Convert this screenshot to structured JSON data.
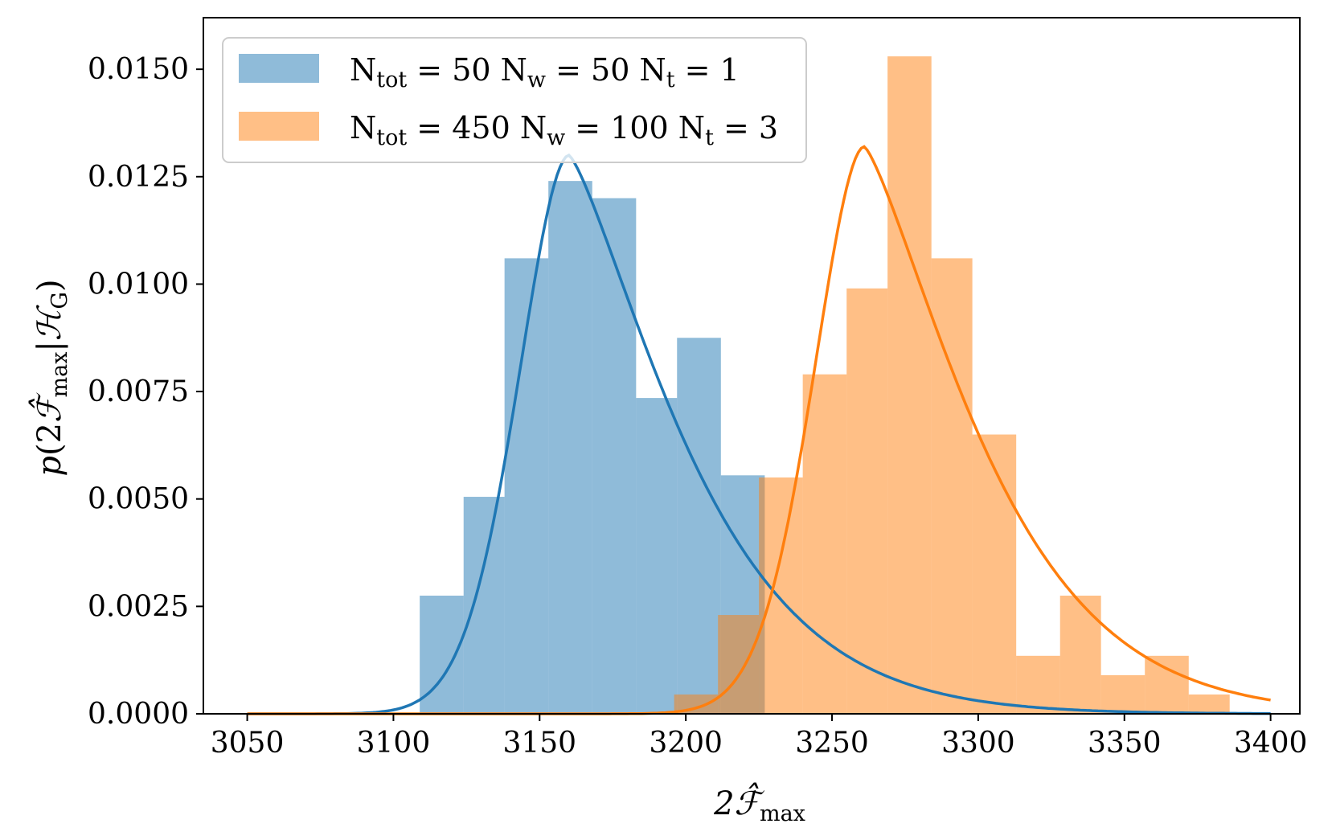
{
  "chart_data": {
    "type": "bar",
    "title": "",
    "xlabel": {
      "main": "2ℱ̂",
      "sub": "max"
    },
    "ylabel": {
      "p": "p",
      "open": "(2",
      "F": "ℱ̂",
      "sub1": "max",
      "bar": "|",
      "H": "ℋ",
      "sub2": "G",
      "close": ")"
    },
    "xlim": [
      3035,
      3410
    ],
    "ylim": [
      0,
      0.0162
    ],
    "xticks": [
      3050,
      3100,
      3150,
      3200,
      3250,
      3300,
      3350,
      3400
    ],
    "xtick_labels": [
      "3050",
      "3100",
      "3150",
      "3200",
      "3250",
      "3300",
      "3350",
      "3400"
    ],
    "yticks": [
      0.0,
      0.0025,
      0.005,
      0.0075,
      0.01,
      0.0125,
      0.015
    ],
    "ytick_labels": [
      "0.0000",
      "0.0025",
      "0.0050",
      "0.0075",
      "0.0100",
      "0.0125",
      "0.0150"
    ],
    "grid": false,
    "legend_position": "top-left",
    "series": [
      {
        "legend": {
          "a": "N",
          "a_sub": "tot",
          "b": " = 50 N",
          "b_sub": "w",
          "c": " = 50 N",
          "c_sub": "t",
          "d": " = 1"
        },
        "color": "#1f77b4",
        "bar_alpha": 0.5,
        "bin_edges": [
          3109,
          3124,
          3138,
          3153,
          3168,
          3183,
          3197,
          3212,
          3227
        ],
        "values": [
          0.00275,
          0.00505,
          0.0106,
          0.0124,
          0.012,
          0.00735,
          0.00875,
          0.00555
        ],
        "curve": {
          "x_start": 3050,
          "x_end": 3400,
          "mode": 3160,
          "peak": 0.013,
          "sigma_left": 17,
          "sigma_right": 30,
          "power": 1.1
        }
      },
      {
        "legend": {
          "a": "N",
          "a_sub": "tot",
          "b": " = 450 N",
          "b_sub": "w",
          "c": " = 100 N",
          "c_sub": "t",
          "d": " = 3"
        },
        "color": "#ff7f0e",
        "bar_alpha": 0.5,
        "bin_edges": [
          3196,
          3211,
          3225,
          3240,
          3255,
          3269,
          3284,
          3298,
          3313,
          3328,
          3342,
          3357,
          3372,
          3386
        ],
        "values": [
          0.00045,
          0.0023,
          0.0055,
          0.0079,
          0.0099,
          0.0153,
          0.0106,
          0.0065,
          0.00135,
          0.00275,
          0.0009,
          0.00135,
          0.00045
        ],
        "curve": {
          "x_start": 3050,
          "x_end": 3400,
          "mode": 3261,
          "peak": 0.0132,
          "sigma_left": 17,
          "sigma_right": 30,
          "power": 1.1
        }
      }
    ]
  }
}
